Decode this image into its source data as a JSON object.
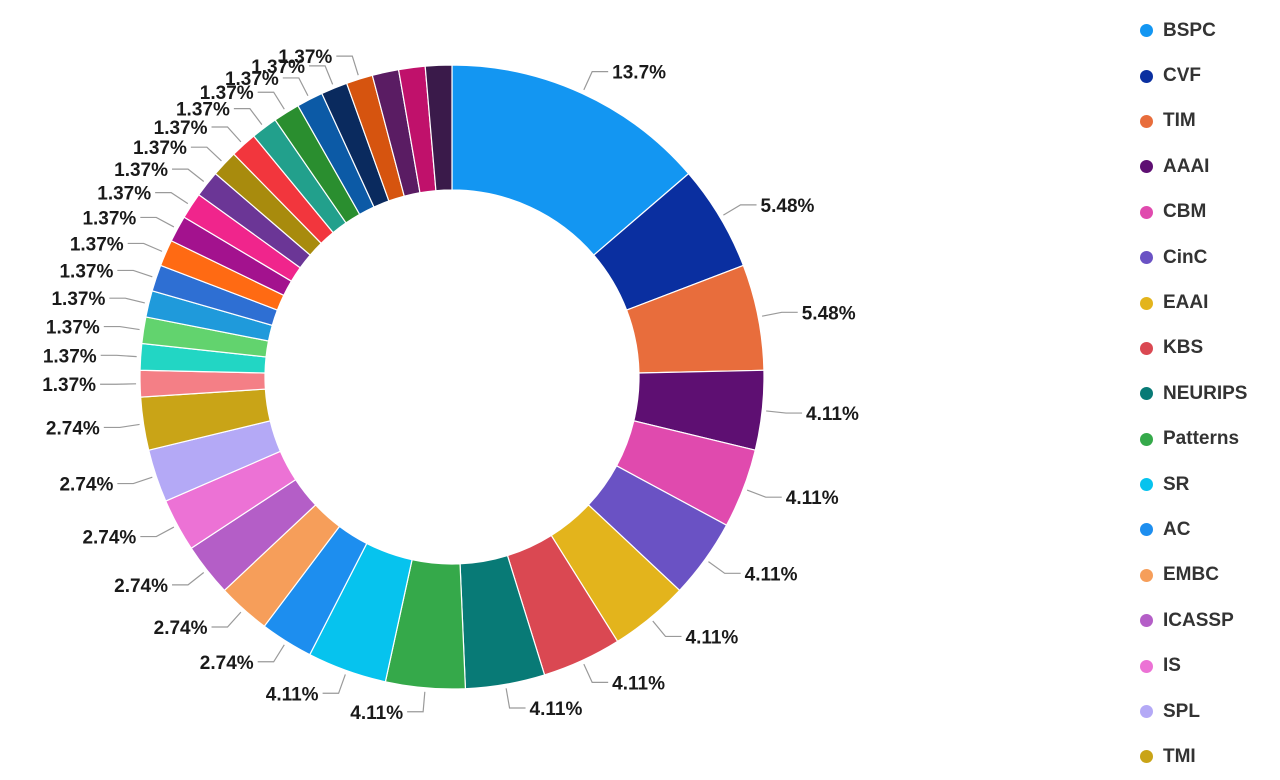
{
  "chart_data": {
    "type": "pie",
    "variant": "donut",
    "legend_position": "right",
    "legend_visible_entries": [
      "BSPC",
      "CVF",
      "TIM",
      "AAAI",
      "CBM",
      "CinC",
      "EAAI",
      "KBS",
      "NEURIPS",
      "Patterns",
      "SR",
      "AC",
      "EMBC",
      "ICASSP",
      "IS",
      "SPL",
      "TMI"
    ],
    "slices": [
      {
        "name": "BSPC",
        "value": 13.7,
        "label": "13.7%",
        "color": "#1396F2"
      },
      {
        "name": "CVF",
        "value": 5.48,
        "label": "5.48%",
        "color": "#0A2FA0"
      },
      {
        "name": "TIM",
        "value": 5.48,
        "label": "5.48%",
        "color": "#E86D3C"
      },
      {
        "name": "AAAI",
        "value": 4.11,
        "label": "4.11%",
        "color": "#5E0F72"
      },
      {
        "name": "CBM",
        "value": 4.11,
        "label": "4.11%",
        "color": "#E04AAE"
      },
      {
        "name": "CinC",
        "value": 4.11,
        "label": "4.11%",
        "color": "#6A52C4"
      },
      {
        "name": "EAAI",
        "value": 4.11,
        "label": "4.11%",
        "color": "#E3B41C"
      },
      {
        "name": "KBS",
        "value": 4.11,
        "label": "4.11%",
        "color": "#DA4852"
      },
      {
        "name": "NEURIPS",
        "value": 4.11,
        "label": "4.11%",
        "color": "#087A76"
      },
      {
        "name": "Patterns",
        "value": 4.11,
        "label": "4.11%",
        "color": "#35A94A"
      },
      {
        "name": "SR",
        "value": 4.11,
        "label": "4.11%",
        "color": "#06C3EE"
      },
      {
        "name": "AC",
        "value": 2.74,
        "label": "2.74%",
        "color": "#1D8EEF"
      },
      {
        "name": "EMBC",
        "value": 2.74,
        "label": "2.74%",
        "color": "#F69E5A"
      },
      {
        "name": "ICASSP",
        "value": 2.74,
        "label": "2.74%",
        "color": "#B45EC7"
      },
      {
        "name": "IS",
        "value": 2.74,
        "label": "2.74%",
        "color": "#EC72D5"
      },
      {
        "name": "SPL",
        "value": 2.74,
        "label": "2.74%",
        "color": "#B4A9F6"
      },
      {
        "name": "TMI",
        "value": 2.74,
        "label": "2.74%",
        "color": "#C9A417"
      },
      {
        "name": "",
        "value": 1.37,
        "label": "1.37%",
        "color": "#F47F86"
      },
      {
        "name": "",
        "value": 1.37,
        "label": "1.37%",
        "color": "#22D6C4"
      },
      {
        "name": "",
        "value": 1.37,
        "label": "1.37%",
        "color": "#62D36E"
      },
      {
        "name": "",
        "value": 1.37,
        "label": "1.37%",
        "color": "#1F9ADB"
      },
      {
        "name": "",
        "value": 1.37,
        "label": "1.37%",
        "color": "#2E6FD3"
      },
      {
        "name": "",
        "value": 1.37,
        "label": "1.37%",
        "color": "#FF6A13"
      },
      {
        "name": "",
        "value": 1.37,
        "label": "1.37%",
        "color": "#A3128E"
      },
      {
        "name": "",
        "value": 1.37,
        "label": "1.37%",
        "color": "#F0258C"
      },
      {
        "name": "",
        "value": 1.37,
        "label": "1.37%",
        "color": "#6B3696"
      },
      {
        "name": "",
        "value": 1.37,
        "label": "1.37%",
        "color": "#A88B0D"
      },
      {
        "name": "",
        "value": 1.37,
        "label": "1.37%",
        "color": "#F2363D"
      },
      {
        "name": "",
        "value": 1.37,
        "label": "1.37%",
        "color": "#22A08C"
      },
      {
        "name": "",
        "value": 1.37,
        "label": "1.37%",
        "color": "#2A8E2F"
      },
      {
        "name": "",
        "value": 1.37,
        "label": "1.37%",
        "color": "#0C5AA6"
      },
      {
        "name": "",
        "value": 1.37,
        "label": "1.37%",
        "color": "#0A2A5E"
      },
      {
        "name": "",
        "value": 1.37,
        "label": "1.37%",
        "color": "#D6540F"
      },
      {
        "name": "",
        "value": 1.37,
        "label": "1.37%",
        "color": "#5A1C63"
      },
      {
        "name": "",
        "value": 1.37,
        "label": "1.37%",
        "color": "#C0116B"
      },
      {
        "name": "",
        "value": 1.37,
        "label": "1.37%",
        "color": "#3A1A4A"
      }
    ],
    "data_labels_visible": [
      "13.7%",
      "5.48%",
      "5.48%",
      "4.11%",
      "4.11%",
      "4.11%",
      "4.11%",
      "4.11%",
      "4.11%",
      "4.11%",
      "4.11%",
      "2.74%",
      "2.74%",
      "2.74%",
      "2.74%",
      "2.74%",
      "2.74%",
      "1.37%",
      "1.37%",
      "1.37%",
      "1.37%",
      "1.37%",
      "1.37%",
      "1.37%",
      "1.37%"
    ]
  }
}
